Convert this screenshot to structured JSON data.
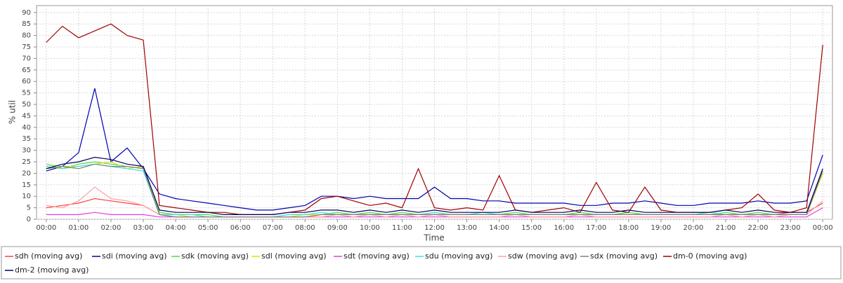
{
  "chart_data": {
    "type": "line",
    "xlabel": "Time",
    "ylabel": "% util",
    "x": [
      0,
      0.5,
      1,
      1.5,
      2,
      2.5,
      3,
      3.5,
      4,
      4.5,
      5,
      5.5,
      6,
      6.5,
      7,
      7.5,
      8,
      8.5,
      9,
      9.5,
      10,
      10.5,
      11,
      11.5,
      12,
      12.5,
      13,
      13.5,
      14,
      14.5,
      15,
      15.5,
      16,
      16.5,
      17,
      17.5,
      18,
      18.5,
      19,
      19.5,
      20,
      20.5,
      21,
      21.5,
      22,
      22.5,
      23,
      23.5,
      24
    ],
    "xlim": [
      -0.3,
      24.3
    ],
    "xticks": [
      {
        "value": 0,
        "label": "00:00"
      },
      {
        "value": 1,
        "label": "01:00"
      },
      {
        "value": 2,
        "label": "02:00"
      },
      {
        "value": 3,
        "label": "03:00"
      },
      {
        "value": 4,
        "label": "04:00"
      },
      {
        "value": 5,
        "label": "05:00"
      },
      {
        "value": 6,
        "label": "06:00"
      },
      {
        "value": 7,
        "label": "07:00"
      },
      {
        "value": 8,
        "label": "08:00"
      },
      {
        "value": 9,
        "label": "09:00"
      },
      {
        "value": 10,
        "label": "10:00"
      },
      {
        "value": 11,
        "label": "11:00"
      },
      {
        "value": 12,
        "label": "12:00"
      },
      {
        "value": 13,
        "label": "13:00"
      },
      {
        "value": 14,
        "label": "14:00"
      },
      {
        "value": 15,
        "label": "15:00"
      },
      {
        "value": 16,
        "label": "16:00"
      },
      {
        "value": 17,
        "label": "17:00"
      },
      {
        "value": 18,
        "label": "18:00"
      },
      {
        "value": 19,
        "label": "19:00"
      },
      {
        "value": 20,
        "label": "20:00"
      },
      {
        "value": 21,
        "label": "21:00"
      },
      {
        "value": 22,
        "label": "22:00"
      },
      {
        "value": 23,
        "label": "23:00"
      },
      {
        "value": 24,
        "label": "00:00"
      }
    ],
    "ylim": [
      0,
      93
    ],
    "yticks": [
      0,
      5,
      10,
      15,
      20,
      25,
      30,
      35,
      40,
      45,
      50,
      55,
      60,
      65,
      70,
      75,
      80,
      85,
      90
    ],
    "grid": true,
    "legend": "bottom",
    "series": [
      {
        "name": "sdh (moving avg)",
        "color": "#ff4040",
        "values": [
          5,
          6,
          7,
          9,
          8,
          7,
          6,
          2,
          1,
          1,
          1,
          1,
          1,
          1,
          1,
          1,
          1,
          2,
          2,
          2,
          2,
          2,
          2,
          2,
          2,
          2,
          2,
          2,
          2,
          2,
          2,
          2,
          2,
          2,
          2,
          2,
          2,
          2,
          2,
          2,
          2,
          2,
          2,
          2,
          2,
          2,
          3,
          3,
          7
        ]
      },
      {
        "name": "sdi (moving avg)",
        "color": "#0000b0",
        "values": [
          21,
          23,
          29,
          57,
          25,
          31,
          22,
          11,
          9,
          8,
          7,
          6,
          5,
          4,
          4,
          5,
          6,
          10,
          10,
          9,
          10,
          9,
          9,
          9,
          14,
          9,
          9,
          8,
          8,
          7,
          7,
          7,
          7,
          6,
          6,
          7,
          7,
          8,
          7,
          6,
          6,
          7,
          7,
          7,
          8,
          7,
          7,
          8,
          28
        ]
      },
      {
        "name": "sdk (moving avg)",
        "color": "#40e040",
        "values": [
          23,
          22,
          24,
          25,
          24,
          23,
          22,
          3,
          2,
          2,
          2,
          1,
          1,
          1,
          1,
          2,
          2,
          2,
          3,
          2,
          3,
          2,
          3,
          2,
          3,
          2,
          2,
          2,
          2,
          3,
          2,
          2,
          2,
          3,
          2,
          2,
          3,
          2,
          2,
          2,
          2,
          2,
          3,
          2,
          3,
          2,
          2,
          2,
          21
        ]
      },
      {
        "name": "sdl (moving avg)",
        "color": "#e0e000",
        "values": [
          24,
          23,
          23,
          24,
          25,
          22,
          23,
          2,
          2,
          1,
          1,
          1,
          1,
          1,
          1,
          1,
          2,
          2,
          2,
          2,
          2,
          2,
          2,
          2,
          3,
          2,
          2,
          2,
          2,
          2,
          2,
          2,
          2,
          2,
          2,
          2,
          2,
          2,
          2,
          2,
          2,
          2,
          2,
          2,
          2,
          2,
          2,
          2,
          20
        ]
      },
      {
        "name": "sdt (moving avg)",
        "color": "#e040e0",
        "values": [
          2,
          2,
          2,
          3,
          2,
          2,
          2,
          1,
          1,
          1,
          1,
          1,
          1,
          1,
          1,
          1,
          1,
          1,
          1,
          1,
          1,
          1,
          1,
          1,
          1,
          1,
          1,
          1,
          1,
          1,
          1,
          1,
          1,
          1,
          1,
          1,
          1,
          1,
          1,
          1,
          1,
          1,
          1,
          1,
          1,
          1,
          1,
          1,
          5
        ]
      },
      {
        "name": "sdu (moving avg)",
        "color": "#40e0e0",
        "values": [
          24,
          22,
          23,
          24,
          23,
          22,
          21,
          2,
          2,
          2,
          1,
          1,
          1,
          1,
          1,
          2,
          2,
          3,
          2,
          2,
          2,
          2,
          2,
          2,
          3,
          2,
          2,
          3,
          2,
          2,
          2,
          2,
          2,
          2,
          2,
          2,
          2,
          2,
          2,
          2,
          2,
          3,
          2,
          2,
          2,
          2,
          2,
          2,
          22
        ]
      },
      {
        "name": "sdw (moving avg)",
        "color": "#ffa0a0",
        "values": [
          6,
          5,
          8,
          14,
          9,
          8,
          6,
          2,
          1,
          1,
          1,
          1,
          1,
          1,
          1,
          1,
          1,
          1,
          2,
          1,
          2,
          1,
          2,
          1,
          2,
          1,
          1,
          1,
          1,
          2,
          1,
          1,
          1,
          2,
          1,
          1,
          1,
          1,
          1,
          1,
          1,
          1,
          2,
          1,
          2,
          1,
          2,
          2,
          8
        ]
      },
      {
        "name": "sdx (moving avg)",
        "color": "#808080",
        "values": [
          22,
          23,
          22,
          24,
          23,
          23,
          22,
          2,
          1,
          1,
          1,
          1,
          1,
          1,
          1,
          1,
          1,
          2,
          2,
          2,
          2,
          2,
          2,
          2,
          2,
          2,
          2,
          2,
          2,
          2,
          2,
          2,
          2,
          2,
          2,
          2,
          2,
          2,
          2,
          2,
          2,
          2,
          2,
          2,
          2,
          2,
          2,
          2,
          21
        ]
      },
      {
        "name": "dm-0 (moving avg)",
        "color": "#a00000",
        "values": [
          77,
          84,
          79,
          82,
          85,
          80,
          78,
          6,
          5,
          4,
          3,
          3,
          2,
          2,
          2,
          3,
          4,
          9,
          10,
          8,
          6,
          7,
          5,
          22,
          5,
          4,
          5,
          4,
          19,
          4,
          3,
          4,
          5,
          3,
          16,
          4,
          3,
          14,
          4,
          3,
          3,
          3,
          4,
          5,
          11,
          4,
          3,
          5,
          76
        ]
      },
      {
        "name": "dm-2 (moving avg)",
        "color": "#000060",
        "values": [
          22,
          24,
          25,
          27,
          26,
          24,
          23,
          4,
          3,
          3,
          3,
          2,
          2,
          2,
          2,
          3,
          3,
          4,
          4,
          3,
          4,
          3,
          4,
          3,
          4,
          3,
          3,
          3,
          3,
          4,
          3,
          3,
          3,
          4,
          3,
          3,
          4,
          3,
          3,
          3,
          3,
          3,
          4,
          3,
          4,
          3,
          3,
          3,
          22
        ]
      }
    ]
  }
}
